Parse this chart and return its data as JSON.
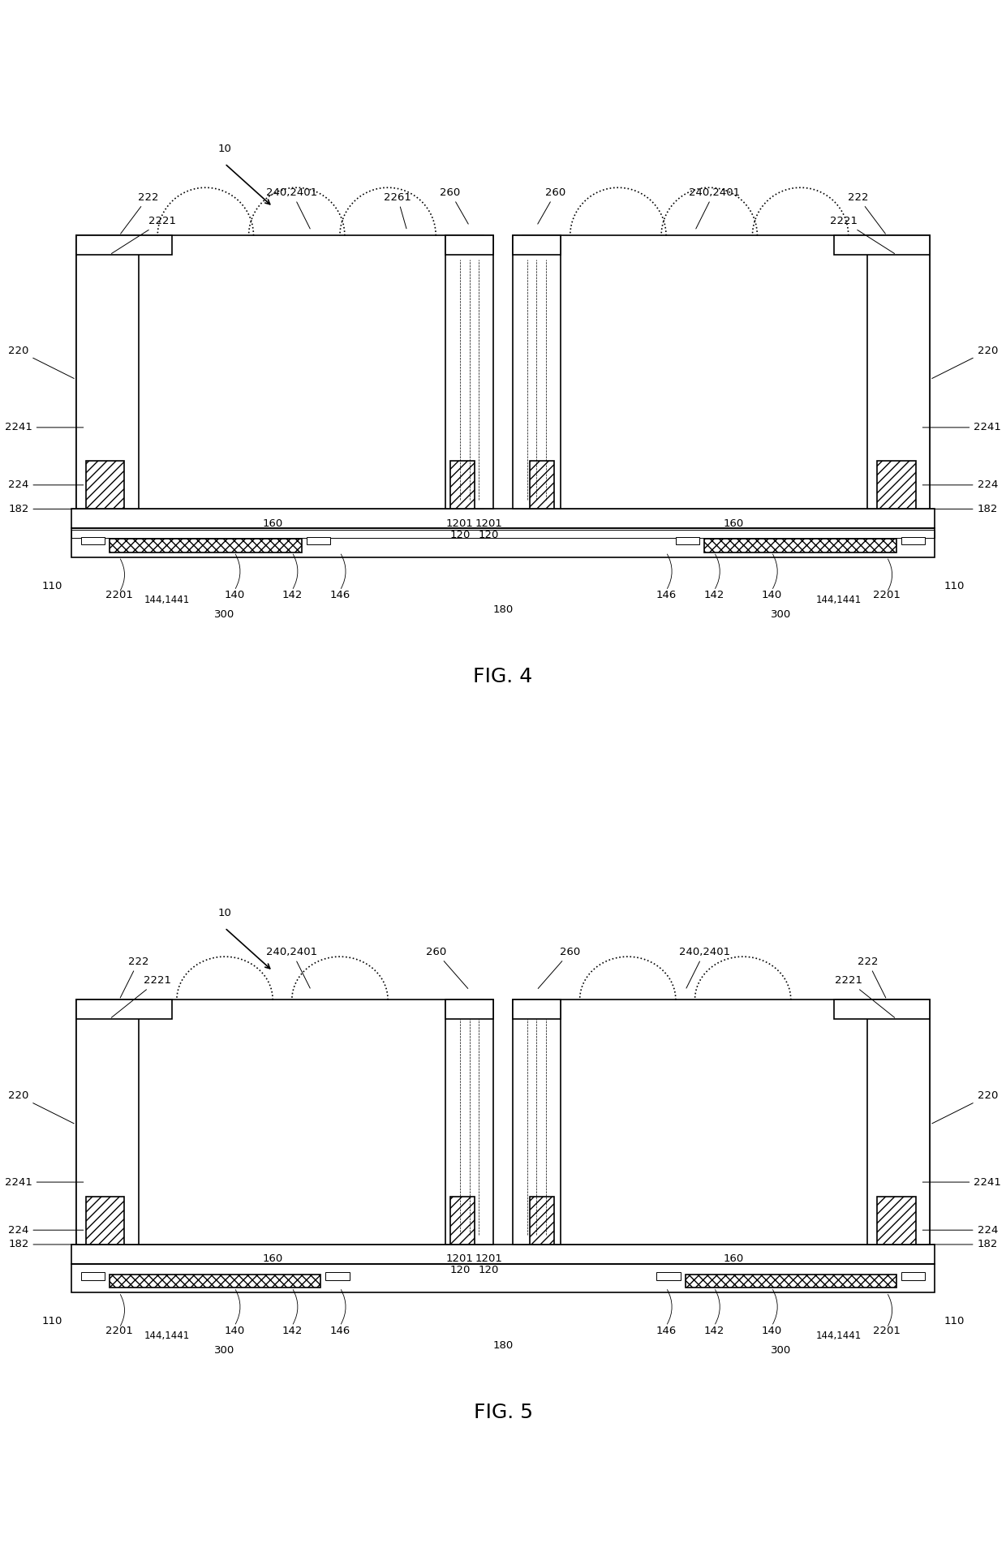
{
  "fig4_caption": "FIG. 4",
  "fig5_caption": "FIG. 5",
  "bg_color": "#ffffff",
  "line_color": "#000000",
  "hatch_color": "#000000",
  "lw": 1.2,
  "thin_lw": 0.7,
  "label_fontsize": 9.5,
  "caption_fontsize": 18
}
